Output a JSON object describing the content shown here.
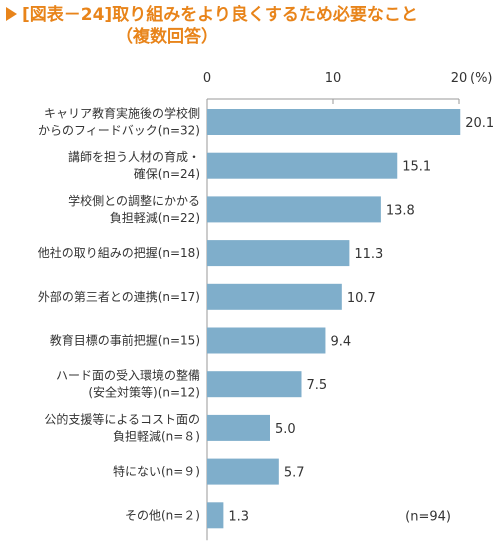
{
  "title": {
    "line1": "[図表－24]取り組みをより良くするため必要なこと",
    "line2": "（複数回答）"
  },
  "colors": {
    "accent": "#E8841A",
    "bar": "#7FAECB",
    "axis": "#9a9a9a"
  },
  "chart_data": {
    "type": "bar",
    "orientation": "horizontal",
    "title": "[図表－24]取り組みをより良くするため必要なこと（複数回答）",
    "categories": [
      [
        "キャリア教育実施後の学校側",
        "からのフィードバック(n=32)"
      ],
      [
        "講師を担う人材の育成・",
        "確保(n=24)"
      ],
      [
        "学校側との調整にかかる",
        "負担軽減(n=22)"
      ],
      [
        "他社の取り組みの把握(n=18)"
      ],
      [
        "外部の第三者との連携(n=17)"
      ],
      [
        "教育目標の事前把握(n=15)"
      ],
      [
        "ハード面の受入環境の整備",
        "(安全対策等)(n=12)"
      ],
      [
        "公的支援等によるコスト面の",
        "負担軽減(n=８)"
      ],
      [
        "特にない(n=９)"
      ],
      [
        "その他(n=２)"
      ]
    ],
    "values": [
      20.1,
      15.1,
      13.8,
      11.3,
      10.7,
      9.4,
      7.5,
      5.0,
      5.7,
      1.3
    ],
    "value_labels": [
      "20.1",
      "15.1",
      "13.8",
      "11.3",
      "10.7",
      "9.4",
      "7.5",
      "5.0",
      "5.7",
      "1.3"
    ],
    "xlim": [
      0,
      20
    ],
    "x_ticks": [
      "0",
      "10",
      "20"
    ],
    "x_unit": "(%)",
    "annotation": "(n=94)",
    "grid": false
  }
}
